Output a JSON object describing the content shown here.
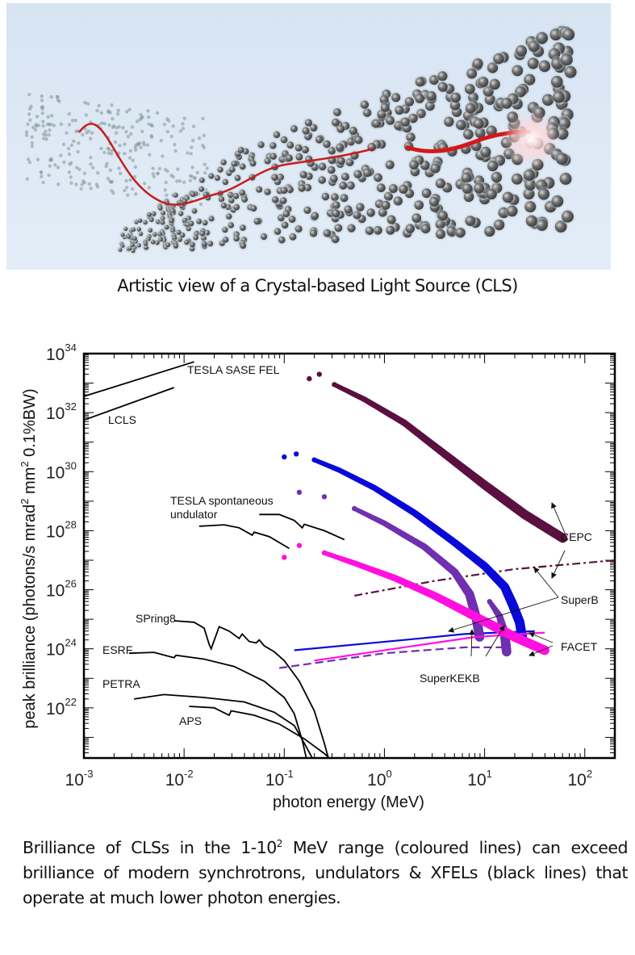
{
  "top_figure": {
    "caption": "Artistic view of a Crystal-based Light Source (CLS)"
  },
  "description": {
    "part1": "Brilliance of CLSs in the 1-10",
    "sup": "2",
    "part2": " MeV range (coloured lines) can exceed brilliance of modern synchrotrons, undulators & XFELs (black lines)  that operate at much lower photon energies."
  },
  "chart_data": {
    "type": "line",
    "xlabel": "photon energy (MeV)",
    "ylabel": "peak brilliance (photons/s mrad² mm² 0.1%BW)",
    "ylabel_parts": [
      "peak brilliance (photons/s mrad",
      "2",
      " mm",
      "2",
      " 0.1%BW)"
    ],
    "xscale": "log",
    "yscale": "log",
    "xlim_log10": [
      -3,
      2.3
    ],
    "ylim_log10": [
      20.3,
      34
    ],
    "x_ticks": [
      {
        "base": "10",
        "exp": "-3",
        "log10": -3
      },
      {
        "base": "10",
        "exp": "-2",
        "log10": -2
      },
      {
        "base": "10",
        "exp": "-1",
        "log10": -1
      },
      {
        "base": "10",
        "exp": "0",
        "log10": 0
      },
      {
        "base": "10",
        "exp": "1",
        "log10": 1
      },
      {
        "base": "10",
        "exp": "2",
        "log10": 2
      }
    ],
    "y_ticks": [
      {
        "base": "10",
        "exp": "22",
        "log10": 22
      },
      {
        "base": "10",
        "exp": "24",
        "log10": 24
      },
      {
        "base": "10",
        "exp": "26",
        "log10": 26
      },
      {
        "base": "10",
        "exp": "28",
        "log10": 28
      },
      {
        "base": "10",
        "exp": "30",
        "log10": 30
      },
      {
        "base": "10",
        "exp": "32",
        "log10": 32
      },
      {
        "base": "10",
        "exp": "34",
        "log10": 34
      }
    ],
    "grid": false,
    "series": [
      {
        "name": "TESLA SASE FEL",
        "color": "#000000",
        "style": "solid",
        "points_log10": [
          [
            -3,
            32.55
          ],
          [
            -1.9,
            33.72
          ]
        ]
      },
      {
        "name": "LCLS",
        "color": "#000000",
        "style": "solid",
        "points_log10": [
          [
            -3,
            31.75
          ],
          [
            -2.1,
            32.85
          ]
        ]
      },
      {
        "name": "TESLA spontaneous undulator",
        "color": "#000000",
        "style": "solid",
        "points_log10": [
          [
            -1.85,
            28.15
          ],
          [
            -1.6,
            28.2
          ],
          [
            -1.45,
            28.1
          ],
          [
            -1.32,
            27.85
          ],
          [
            -1.3,
            27.95
          ],
          [
            -1.15,
            27.8
          ],
          [
            -0.95,
            27.4
          ]
        ]
      },
      {
        "name": "TESLA spontaneous undulator (2nd)",
        "color": "#000000",
        "style": "solid",
        "points_log10": [
          [
            -1.25,
            28.55
          ],
          [
            -1.05,
            28.55
          ],
          [
            -0.9,
            28.35
          ],
          [
            -0.82,
            28.1
          ],
          [
            -0.8,
            28.22
          ],
          [
            -0.6,
            28.0
          ],
          [
            -0.4,
            27.7
          ]
        ]
      },
      {
        "name": "SPring8",
        "color": "#000000",
        "style": "solid",
        "points_log10": [
          [
            -2.1,
            24.95
          ],
          [
            -1.9,
            24.9
          ],
          [
            -1.8,
            24.7
          ],
          [
            -1.75,
            24.15
          ],
          [
            -1.73,
            24.0
          ],
          [
            -1.65,
            24.75
          ],
          [
            -1.55,
            24.6
          ],
          [
            -1.45,
            24.35
          ],
          [
            -1.42,
            24.5
          ],
          [
            -1.35,
            24.25
          ],
          [
            -1.28,
            24.2
          ],
          [
            -1.25,
            24.3
          ],
          [
            -1.2,
            24.1
          ],
          [
            -1.1,
            23.9
          ],
          [
            -1.0,
            23.6
          ],
          [
            -0.85,
            22.9
          ],
          [
            -0.7,
            21.9
          ],
          [
            -0.6,
            20.8
          ],
          [
            -0.56,
            20.3
          ]
        ]
      },
      {
        "name": "ESRF",
        "color": "#000000",
        "style": "solid",
        "points_log10": [
          [
            -2.55,
            23.85
          ],
          [
            -2.3,
            23.88
          ],
          [
            -2.1,
            23.7
          ],
          [
            -2.08,
            23.78
          ],
          [
            -1.8,
            23.65
          ],
          [
            -1.5,
            23.4
          ],
          [
            -1.2,
            22.9
          ],
          [
            -1.0,
            22.35
          ],
          [
            -0.9,
            21.8
          ],
          [
            -0.82,
            20.9
          ],
          [
            -0.78,
            20.3
          ]
        ]
      },
      {
        "name": "PETRA",
        "color": "#000000",
        "style": "solid",
        "points_log10": [
          [
            -2.5,
            22.3
          ],
          [
            -2.2,
            22.45
          ],
          [
            -1.8,
            22.35
          ],
          [
            -1.4,
            22.2
          ],
          [
            -1.1,
            21.85
          ],
          [
            -0.9,
            21.4
          ],
          [
            -0.8,
            20.8
          ],
          [
            -0.72,
            20.3
          ]
        ]
      },
      {
        "name": "APS",
        "color": "#000000",
        "style": "solid",
        "points_log10": [
          [
            -1.95,
            22.05
          ],
          [
            -1.7,
            22.0
          ],
          [
            -1.55,
            21.75
          ],
          [
            -1.53,
            21.9
          ],
          [
            -1.3,
            21.75
          ],
          [
            -1.05,
            21.45
          ],
          [
            -0.8,
            20.95
          ],
          [
            -0.6,
            20.45
          ],
          [
            -0.55,
            20.3
          ]
        ]
      },
      {
        "name": "CEPC",
        "color": "#5a1040",
        "style": "stars",
        "points_log10": [
          [
            -0.75,
            33.15
          ],
          [
            -0.65,
            33.3
          ],
          [
            -0.5,
            32.95
          ],
          [
            -0.2,
            32.45
          ],
          [
            0.2,
            31.65
          ],
          [
            0.6,
            30.6
          ],
          [
            1.0,
            29.55
          ],
          [
            1.4,
            28.55
          ],
          [
            1.78,
            27.75
          ]
        ]
      },
      {
        "name": "CEPC (line)",
        "color": "#5a1040",
        "style": "dashdot",
        "points_log10": [
          [
            -0.3,
            25.8
          ],
          [
            0.5,
            26.3
          ],
          [
            1.3,
            26.7
          ],
          [
            2.3,
            27.0
          ]
        ]
      },
      {
        "name": "SuperB",
        "color": "#0a0ad8",
        "style": "stars",
        "points_log10": [
          [
            -1.0,
            30.5
          ],
          [
            -0.88,
            30.6
          ],
          [
            -0.7,
            30.4
          ],
          [
            -0.45,
            30.05
          ],
          [
            -0.1,
            29.45
          ],
          [
            0.3,
            28.6
          ],
          [
            0.7,
            27.6
          ],
          [
            1.0,
            26.8
          ],
          [
            1.2,
            26.1
          ],
          [
            1.28,
            25.5
          ],
          [
            1.35,
            24.9
          ],
          [
            1.38,
            24.3
          ]
        ]
      },
      {
        "name": "SuperB (line)",
        "color": "#0a0ad8",
        "style": "solid",
        "points_log10": [
          [
            -0.9,
            23.95
          ],
          [
            0.2,
            24.3
          ],
          [
            0.8,
            24.5
          ],
          [
            1.5,
            24.6
          ]
        ]
      },
      {
        "name": "SuperKEKB",
        "color": "#7030b0",
        "style": "stars",
        "points_log10": [
          [
            -0.85,
            29.3
          ],
          [
            -0.6,
            29.15
          ],
          [
            -0.3,
            28.75
          ],
          [
            0.0,
            28.25
          ],
          [
            0.4,
            27.45
          ],
          [
            0.7,
            26.6
          ],
          [
            0.85,
            25.85
          ],
          [
            0.92,
            25.0
          ],
          [
            0.95,
            24.4
          ]
        ]
      },
      {
        "name": "SuperKEKB (2nd)",
        "color": "#7030b0",
        "style": "stars",
        "points_log10": [
          [
            0.5,
            27.2
          ],
          [
            0.8,
            26.2
          ],
          [
            1.05,
            25.6
          ],
          [
            1.15,
            25.1
          ],
          [
            1.2,
            24.5
          ],
          [
            1.22,
            23.9
          ]
        ]
      },
      {
        "name": "SuperKEKB (line)",
        "color": "#7030b0",
        "style": "dashed",
        "points_log10": [
          [
            -1.05,
            23.35
          ],
          [
            0.0,
            23.85
          ],
          [
            0.8,
            24.05
          ],
          [
            1.2,
            24.05
          ]
        ]
      },
      {
        "name": "FACET",
        "color": "#ff10e0",
        "style": "stars",
        "points_log10": [
          [
            -1.0,
            27.1
          ],
          [
            -0.85,
            27.5
          ],
          [
            -0.6,
            27.25
          ],
          [
            -0.3,
            26.9
          ],
          [
            0.1,
            26.4
          ],
          [
            0.5,
            25.8
          ],
          [
            0.9,
            25.1
          ],
          [
            1.3,
            24.4
          ],
          [
            1.6,
            23.95
          ]
        ]
      },
      {
        "name": "FACET (line)",
        "color": "#ff10e0",
        "style": "solid",
        "points_log10": [
          [
            -0.7,
            23.6
          ],
          [
            0.3,
            24.1
          ],
          [
            0.9,
            24.4
          ],
          [
            1.6,
            24.55
          ]
        ]
      }
    ],
    "annotations": [
      {
        "text": "TESLA SASE FEL",
        "color": "#111111"
      },
      {
        "text": "LCLS",
        "color": "#111111"
      },
      {
        "text": "TESLA spontaneous",
        "color": "#111111"
      },
      {
        "text": "undulator",
        "color": "#111111"
      },
      {
        "text": "SPring8",
        "color": "#111111"
      },
      {
        "text": "ESRF",
        "color": "#111111"
      },
      {
        "text": "PETRA",
        "color": "#111111"
      },
      {
        "text": "APS",
        "color": "#111111"
      },
      {
        "text": "CEPC",
        "color": "#5a1040"
      },
      {
        "text": "SuperB",
        "color": "#1a1ab8"
      },
      {
        "text": "FACET",
        "color": "#ff20d0"
      },
      {
        "text": "SuperKEKB",
        "color": "#7030b0"
      }
    ]
  }
}
